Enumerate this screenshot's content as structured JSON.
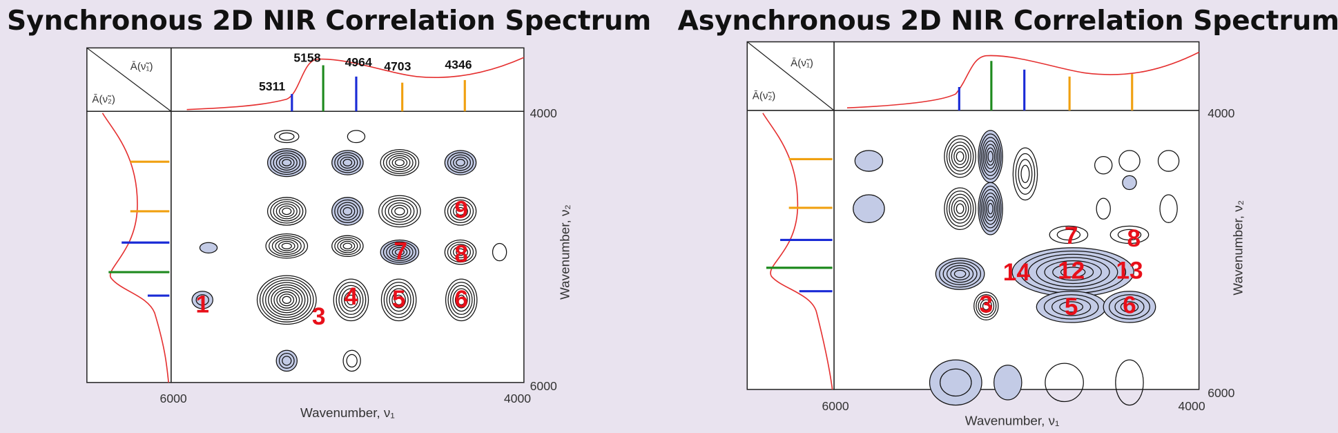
{
  "panels": [
    {
      "title": "Synchronous 2D NIR Correlation Spectrum",
      "corner_labels": [
        "Ā(ν̃₁)",
        "Ā(ν̃₂)"
      ],
      "x_axis": {
        "label": "Wavenumber, ν₁",
        "ticks": [
          "6000",
          "4000"
        ]
      },
      "y_axis": {
        "label": "Wavenumber, ν₂",
        "ticks": [
          "4000",
          "6000"
        ]
      },
      "peak_labels": [
        "5311",
        "5158",
        "4964",
        "4703",
        "4346"
      ],
      "cross_peaks": [
        "1",
        "3",
        "4",
        "5",
        "6",
        "7",
        "8",
        "9"
      ]
    },
    {
      "title": "Asynchronous 2D NIR Correlation Spectrum",
      "corner_labels": [
        "Ā(ν̃₁)",
        "Ā(ν̃₂)"
      ],
      "x_axis": {
        "label": "Wavenumber, ν₁",
        "ticks": [
          "6000",
          "4000"
        ]
      },
      "y_axis": {
        "label": "Wavenumber, ν₂",
        "ticks": [
          "4000",
          "6000"
        ]
      },
      "cross_peaks": [
        "7",
        "8",
        "14",
        "12",
        "13",
        "3",
        "5",
        "6"
      ]
    }
  ]
}
